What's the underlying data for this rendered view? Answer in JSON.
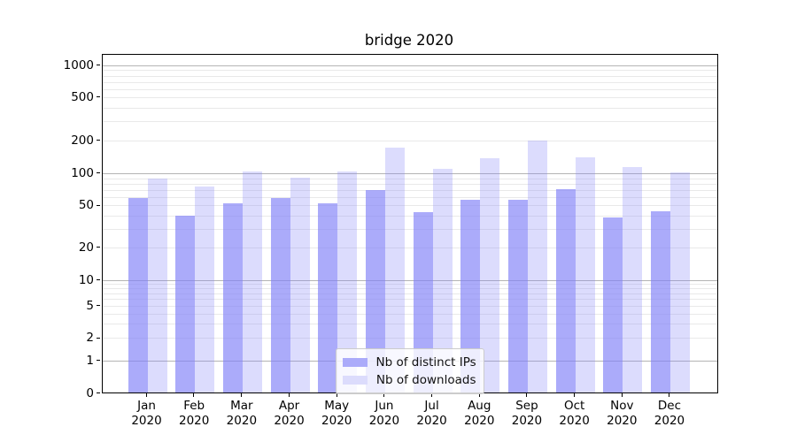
{
  "window": {
    "title": "bridge 2020"
  },
  "chart_data": {
    "type": "bar",
    "title": "bridge 2020",
    "categories": [
      "Jan 2020",
      "Feb 2020",
      "Mar 2020",
      "Apr 2020",
      "May 2020",
      "Jun 2020",
      "Jul 2020",
      "Aug 2020",
      "Sep 2020",
      "Oct 2020",
      "Nov 2020",
      "Dec 2020"
    ],
    "series": [
      {
        "name": "Nb of distinct IPs",
        "values": [
          57,
          39,
          51,
          57,
          51,
          68,
          42,
          55,
          55,
          70,
          38,
          43
        ],
        "fill": "rgba(128,128,248,0.66)",
        "swatch": "#ababfa"
      },
      {
        "name": "Nb of downloads",
        "values": [
          88,
          74,
          101,
          90,
          102,
          170,
          107,
          135,
          198,
          138,
          112,
          100
        ],
        "fill": "rgba(128,128,248,0.28)",
        "swatch": "#dcdcfc"
      }
    ],
    "xlabel": "",
    "ylabel": "",
    "yscale": "symlog",
    "yticks": [
      0,
      1,
      2,
      5,
      10,
      20,
      50,
      100,
      200,
      500,
      1000
    ],
    "ylim": [
      0,
      1300
    ],
    "grid": true,
    "legend_position": "lower center"
  },
  "colors": {
    "bar_base": "#8080f8",
    "ips_bar_solid": "#ababfa",
    "downloads_bar_solid": "#dcdcfc",
    "grid_major": "#b4b4b4",
    "grid_minor": "#e9e9e9",
    "axis": "#000000",
    "legend_border": "#cccccc",
    "text": "#000000"
  }
}
